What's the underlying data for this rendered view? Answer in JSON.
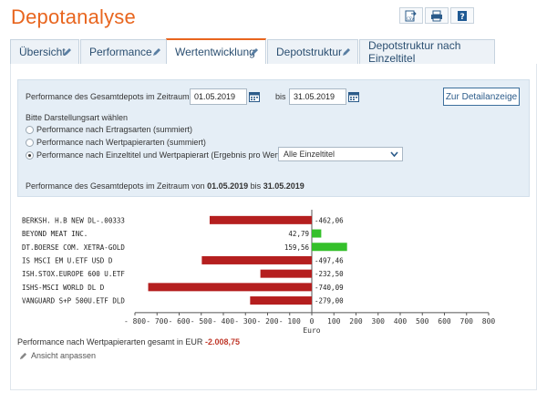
{
  "page": {
    "title": "Depotanalyse"
  },
  "top_icons": [
    "csv-export-icon",
    "print-icon",
    "help-icon"
  ],
  "tabs": [
    {
      "label": "Übersicht",
      "active": false
    },
    {
      "label": "Performance",
      "active": false
    },
    {
      "label": "Wertentwicklung",
      "active": true
    },
    {
      "label": "Depotstruktur",
      "active": false
    },
    {
      "label": "Depotstruktur nach Einzeltitel",
      "active": false
    }
  ],
  "filter": {
    "period_label": "Performance des Gesamtdepots im Zeitraum von",
    "from_date": "01.05.2019",
    "to_label": "bis",
    "to_date": "31.05.2019",
    "detail_button": "Zur Detailanzeige",
    "display_mode_label": "Bitte Darstellungsart wählen",
    "options": [
      {
        "label": "Performance nach Ertragsarten (summiert)",
        "selected": false
      },
      {
        "label": "Performance nach Wertpapierarten (summiert)",
        "selected": false
      },
      {
        "label": "Performance nach Einzeltitel und Wertpapierart (Ergebnis pro Wertpapier)",
        "selected": true
      }
    ],
    "select_value": "Alle Einzeltitel",
    "summary_prefix": "Performance des Gesamtdepots im Zeitraum von",
    "summary_from": "01.05.2019",
    "summary_to_label": "bis",
    "summary_to": "31.05.2019"
  },
  "chart_data": {
    "type": "bar",
    "orientation": "horizontal",
    "categories": [
      "BERKSH. H.B NEW DL-.00333",
      "BEYOND MEAT INC.",
      "DT.BOERSE COM. XETRA-GOLD",
      "IS MSCI EM U.ETF USD D",
      "ISH.STOX.EUROPE 600 U.ETF",
      "ISHS-MSCI WORLD DL D",
      "VANGUARD S+P 500U.ETF DLD"
    ],
    "values": [
      -462.06,
      42.79,
      159.56,
      -497.46,
      -232.5,
      -740.09,
      -279.0
    ],
    "value_labels": [
      "-462,06",
      "42,79",
      "159,56",
      "-497,46",
      "-232,50",
      "-740,09",
      "-279,00"
    ],
    "colors": {
      "negative": "#b51f1f",
      "positive": "#35c02b"
    },
    "xlabel": "Euro",
    "xlim": [
      -800,
      800
    ],
    "xticks": [
      -800,
      -700,
      -600,
      -500,
      -400,
      -300,
      -200,
      -100,
      0,
      100,
      200,
      300,
      400,
      500,
      600,
      700,
      800
    ],
    "grid": false
  },
  "footer": {
    "total_label": "Performance nach Wertpapierarten gesamt in EUR",
    "total_value": "-2.008,75",
    "adjust_label": "Ansicht anpassen"
  }
}
